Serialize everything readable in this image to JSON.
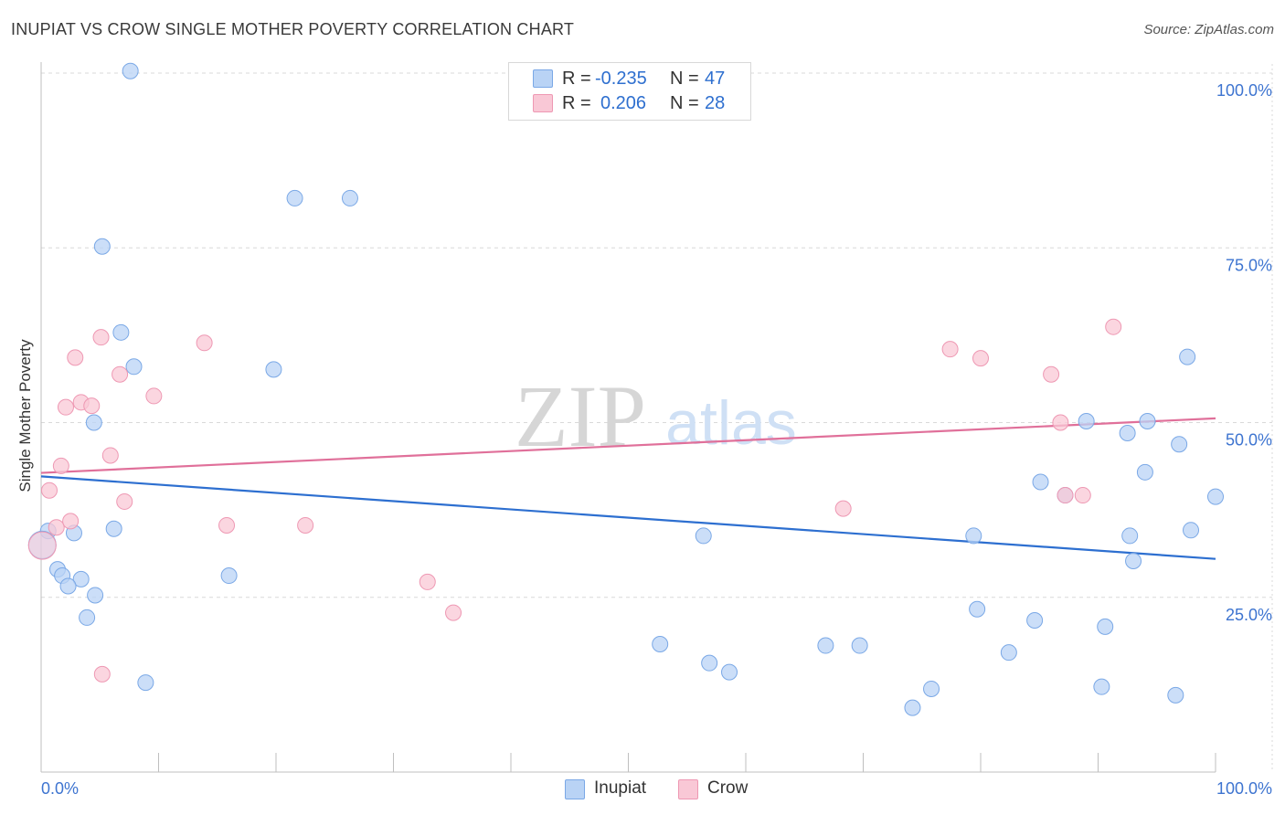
{
  "title": "INUPIAT VS CROW SINGLE MOTHER POVERTY CORRELATION CHART",
  "source": "Source: ZipAtlas.com",
  "watermark": {
    "zip": "ZIP",
    "atlas": "atlas"
  },
  "legend_top": {
    "r_label": "R =",
    "n_label": "N =",
    "rows": [
      {
        "series": "Inupiat",
        "r": "-0.235",
        "n": "47"
      },
      {
        "series": "Crow",
        "r": "0.206",
        "n": "28"
      }
    ]
  },
  "colors": {
    "inupiat_fill": "#b9d3f5",
    "inupiat_stroke": "#7aa8e6",
    "inupiat_line": "#2d6fd0",
    "crow_fill": "#f9c8d6",
    "crow_stroke": "#ee98b3",
    "crow_line": "#e0709a",
    "axis_text": "#3d74d0",
    "grid": "#d9d9d9"
  },
  "chart_data": {
    "type": "scatter",
    "title": "INUPIAT VS CROW SINGLE MOTHER POVERTY CORRELATION CHART",
    "xlabel": "",
    "ylabel": "Single Mother Poverty",
    "xlim": [
      0,
      100
    ],
    "ylim": [
      0,
      100
    ],
    "x_tick_labels": [
      "0.0%",
      "100.0%"
    ],
    "y_ticks": [
      {
        "value": 25,
        "label": "25.0%"
      },
      {
        "value": 50,
        "label": "50.0%"
      },
      {
        "value": 75,
        "label": "75.0%"
      },
      {
        "value": 100,
        "label": "100.0%"
      }
    ],
    "series": [
      {
        "name": "Inupiat",
        "r": -0.235,
        "n": 47,
        "trend": {
          "x": [
            0,
            100
          ],
          "y": [
            42.3,
            30.5
          ]
        },
        "points": [
          {
            "x": 7.6,
            "y": 100.3
          },
          {
            "x": 21.6,
            "y": 82.1
          },
          {
            "x": 26.3,
            "y": 82.1
          },
          {
            "x": 5.2,
            "y": 75.2
          },
          {
            "x": 6.8,
            "y": 62.9
          },
          {
            "x": 7.9,
            "y": 58.0
          },
          {
            "x": 19.8,
            "y": 57.6
          },
          {
            "x": 4.5,
            "y": 50.0
          },
          {
            "x": 0.6,
            "y": 34.5
          },
          {
            "x": 2.8,
            "y": 34.2
          },
          {
            "x": 6.2,
            "y": 34.8
          },
          {
            "x": 0.1,
            "y": 32.5
          },
          {
            "x": 1.4,
            "y": 29.0
          },
          {
            "x": 1.8,
            "y": 28.1
          },
          {
            "x": 3.4,
            "y": 27.6
          },
          {
            "x": 2.3,
            "y": 26.6
          },
          {
            "x": 4.6,
            "y": 25.3
          },
          {
            "x": 3.9,
            "y": 22.1
          },
          {
            "x": 16.0,
            "y": 28.1
          },
          {
            "x": 8.9,
            "y": 12.8
          },
          {
            "x": 56.4,
            "y": 33.8
          },
          {
            "x": 52.7,
            "y": 18.3
          },
          {
            "x": 56.9,
            "y": 15.6
          },
          {
            "x": 58.6,
            "y": 14.3
          },
          {
            "x": 66.8,
            "y": 18.1
          },
          {
            "x": 69.7,
            "y": 18.1
          },
          {
            "x": 74.2,
            "y": 9.2
          },
          {
            "x": 75.8,
            "y": 11.9
          },
          {
            "x": 79.4,
            "y": 33.8
          },
          {
            "x": 79.7,
            "y": 23.3
          },
          {
            "x": 82.4,
            "y": 17.1
          },
          {
            "x": 84.6,
            "y": 21.7
          },
          {
            "x": 85.1,
            "y": 41.5
          },
          {
            "x": 87.2,
            "y": 39.6
          },
          {
            "x": 89.0,
            "y": 50.2
          },
          {
            "x": 90.6,
            "y": 20.8
          },
          {
            "x": 90.3,
            "y": 12.2
          },
          {
            "x": 92.5,
            "y": 48.5
          },
          {
            "x": 92.7,
            "y": 33.8
          },
          {
            "x": 94.0,
            "y": 42.9
          },
          {
            "x": 94.2,
            "y": 50.2
          },
          {
            "x": 93.0,
            "y": 30.2
          },
          {
            "x": 96.6,
            "y": 11.0
          },
          {
            "x": 96.9,
            "y": 46.9
          },
          {
            "x": 97.6,
            "y": 59.4
          },
          {
            "x": 97.9,
            "y": 34.6
          },
          {
            "x": 100.0,
            "y": 39.4
          }
        ]
      },
      {
        "name": "Crow",
        "r": 0.206,
        "n": 28,
        "trend": {
          "x": [
            0,
            100
          ],
          "y": [
            42.8,
            50.6
          ]
        },
        "points": [
          {
            "x": 0.7,
            "y": 40.3
          },
          {
            "x": 1.3,
            "y": 35.0
          },
          {
            "x": 1.7,
            "y": 43.8
          },
          {
            "x": 2.1,
            "y": 52.2
          },
          {
            "x": 2.5,
            "y": 35.9
          },
          {
            "x": 2.9,
            "y": 59.3
          },
          {
            "x": 3.4,
            "y": 52.9
          },
          {
            "x": 4.3,
            "y": 52.4
          },
          {
            "x": 5.1,
            "y": 62.2
          },
          {
            "x": 5.2,
            "y": 14.0
          },
          {
            "x": 5.9,
            "y": 45.3
          },
          {
            "x": 6.7,
            "y": 56.9
          },
          {
            "x": 7.1,
            "y": 38.7
          },
          {
            "x": 9.6,
            "y": 53.8
          },
          {
            "x": 13.9,
            "y": 61.4
          },
          {
            "x": 15.8,
            "y": 35.3
          },
          {
            "x": 22.5,
            "y": 35.3
          },
          {
            "x": 32.9,
            "y": 27.2
          },
          {
            "x": 35.1,
            "y": 22.8
          },
          {
            "x": 68.3,
            "y": 37.7
          },
          {
            "x": 77.4,
            "y": 60.5
          },
          {
            "x": 80.0,
            "y": 59.2
          },
          {
            "x": 86.8,
            "y": 50.0
          },
          {
            "x": 87.2,
            "y": 39.6
          },
          {
            "x": 88.7,
            "y": 39.6
          },
          {
            "x": 86.0,
            "y": 56.9
          },
          {
            "x": 91.3,
            "y": 63.7
          },
          {
            "x": 0.1,
            "y": 32.4
          }
        ]
      }
    ]
  }
}
